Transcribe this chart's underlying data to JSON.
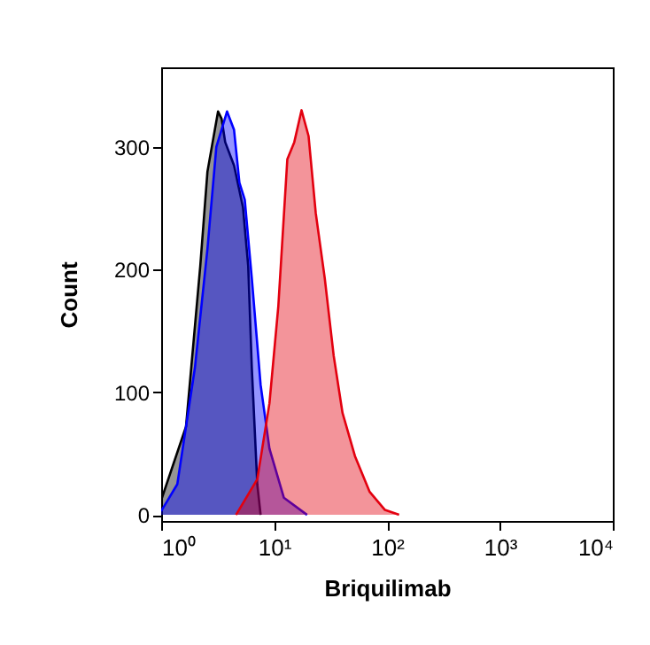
{
  "chart_data": {
    "type": "area",
    "xlabel": "Briquilimab",
    "ylabel": "Count",
    "log": "x",
    "xlim": [
      1,
      10000
    ],
    "ylim": [
      -5,
      365
    ],
    "xticks": [
      {
        "value": 1,
        "label": "10⁰"
      },
      {
        "value": 10,
        "label": "10¹"
      },
      {
        "value": 100,
        "label": "10²"
      },
      {
        "value": 1000,
        "label": "10³"
      },
      {
        "value": 10000,
        "label": "10⁴"
      }
    ],
    "yticks": [
      0,
      100,
      200,
      300
    ],
    "series": [
      {
        "color": "#000000",
        "x": [
          1.0,
          1.66,
          2.22,
          2.57,
          3.19,
          3.43,
          3.69,
          4.42,
          5.3,
          5.9,
          6.35,
          7.1,
          7.6
        ],
        "values": [
          12,
          72,
          203,
          280,
          329,
          323,
          304,
          285,
          251,
          203,
          120,
          25,
          0
        ]
      },
      {
        "color": "#0000ff",
        "x": [
          1.0,
          1.39,
          1.99,
          2.57,
          3.08,
          3.83,
          4.42,
          4.93,
          5.5,
          6.35,
          7.6,
          9.1,
          12.2,
          19.6
        ],
        "values": [
          3,
          25,
          120,
          217,
          300,
          329,
          314,
          271,
          257,
          193,
          106,
          54,
          14,
          0
        ]
      },
      {
        "color": "#e3000f",
        "x": [
          4.6,
          7.1,
          9.1,
          10.9,
          13.1,
          15.1,
          17.5,
          20.2,
          23.4,
          28.1,
          33.7,
          40.4,
          52,
          70,
          96,
          128
        ],
        "values": [
          0,
          29,
          91,
          170,
          290,
          304,
          330,
          309,
          246,
          193,
          130,
          83,
          48,
          19,
          4,
          0
        ]
      }
    ]
  }
}
